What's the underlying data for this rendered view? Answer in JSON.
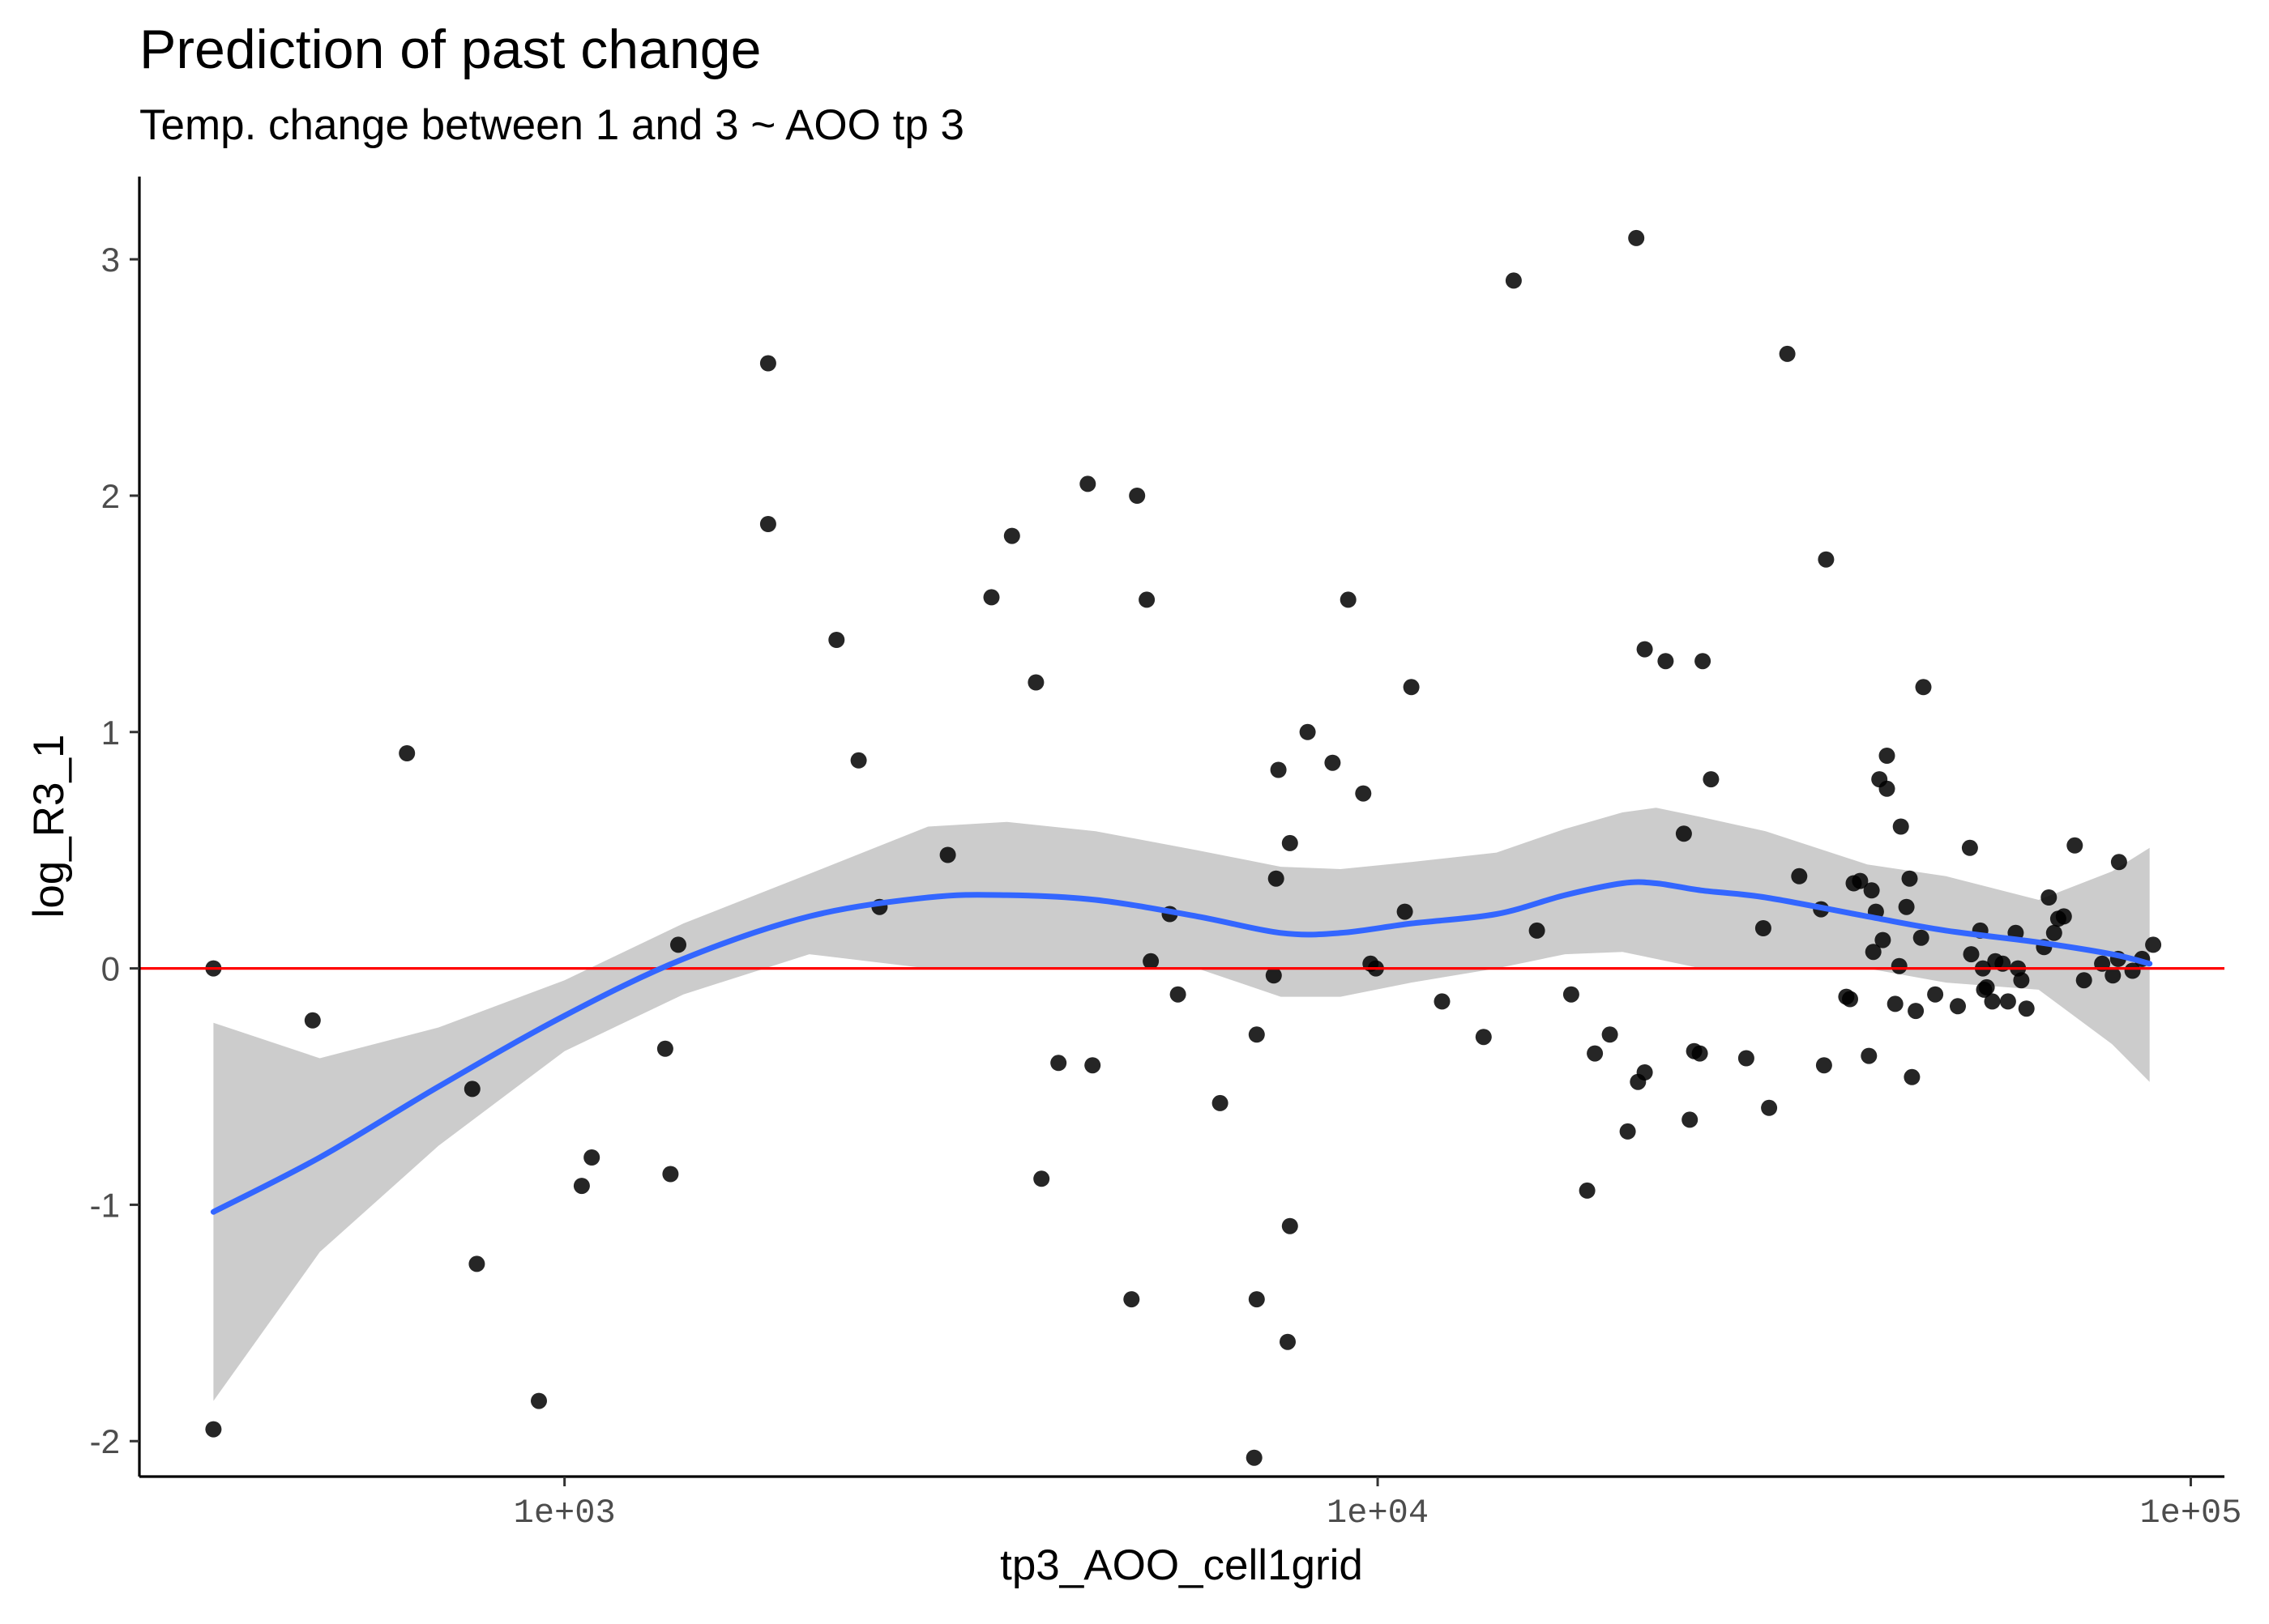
{
  "chart_data": {
    "type": "scatter",
    "title": "Prediction of past change",
    "subtitle": "Temp. change between 1 and 3 ~ AOO tp 3",
    "xlabel": "tp3_AOO_cell1grid",
    "ylabel": "log_R3_1",
    "x_scale": "log10",
    "xlim": [
      300,
      110000
    ],
    "ylim": [
      -2.15,
      3.35
    ],
    "x_ticks": [
      1000,
      10000,
      100000
    ],
    "x_tick_labels": [
      "1e+03",
      "1e+04",
      "1e+05"
    ],
    "y_ticks": [
      -2,
      -1,
      0,
      1,
      2,
      3
    ],
    "y_tick_labels": [
      "-2",
      "-1",
      "0",
      "1",
      "2",
      "3"
    ],
    "grid": false,
    "reference_line": {
      "y": 0,
      "color": "#ff0000"
    },
    "colors": {
      "points": "#000000",
      "smooth_line": "#3366ff",
      "ribbon": "#cccccc",
      "reference_line": "#ff0000",
      "axis": "#000000",
      "tick_labels": "#4d4d4d"
    },
    "points": [
      [
        370,
        0.0
      ],
      [
        370,
        -1.95
      ],
      [
        490,
        -0.22
      ],
      [
        640,
        0.91
      ],
      [
        770,
        -0.51
      ],
      [
        780,
        -1.25
      ],
      [
        930,
        -1.83
      ],
      [
        1050,
        -0.92
      ],
      [
        1080,
        -0.8
      ],
      [
        1330,
        -0.34
      ],
      [
        1350,
        -0.87
      ],
      [
        1380,
        0.1
      ],
      [
        1780,
        2.56
      ],
      [
        1780,
        1.88
      ],
      [
        2160,
        1.39
      ],
      [
        2300,
        0.88
      ],
      [
        2440,
        0.26
      ],
      [
        2960,
        0.48
      ],
      [
        3350,
        1.57
      ],
      [
        3550,
        1.83
      ],
      [
        3800,
        1.21
      ],
      [
        3860,
        -0.89
      ],
      [
        4050,
        -0.4
      ],
      [
        4400,
        2.05
      ],
      [
        4460,
        -0.41
      ],
      [
        4980,
        -1.4
      ],
      [
        5060,
        2.0
      ],
      [
        5200,
        1.56
      ],
      [
        5260,
        0.03
      ],
      [
        5550,
        0.23
      ],
      [
        5680,
        -0.11
      ],
      [
        6400,
        -0.57
      ],
      [
        7050,
        -2.07
      ],
      [
        7100,
        -0.28
      ],
      [
        7100,
        -1.4
      ],
      [
        7500,
        0.38
      ],
      [
        7450,
        -0.03
      ],
      [
        7550,
        0.84
      ],
      [
        7750,
        -1.58
      ],
      [
        7800,
        -1.09
      ],
      [
        7800,
        0.53
      ],
      [
        8200,
        1.0
      ],
      [
        8800,
        0.87
      ],
      [
        9200,
        1.56
      ],
      [
        9600,
        0.74
      ],
      [
        9800,
        0.02
      ],
      [
        9950,
        0.0
      ],
      [
        10800,
        0.24
      ],
      [
        11000,
        1.19
      ],
      [
        12000,
        -0.14
      ],
      [
        13500,
        -0.29
      ],
      [
        14700,
        2.91
      ],
      [
        15700,
        0.16
      ],
      [
        17300,
        -0.11
      ],
      [
        18100,
        -0.94
      ],
      [
        18500,
        -0.36
      ],
      [
        19300,
        -0.28
      ],
      [
        20300,
        -0.69
      ],
      [
        20800,
        3.09
      ],
      [
        20900,
        -0.48
      ],
      [
        21300,
        1.35
      ],
      [
        21300,
        -0.44
      ],
      [
        22600,
        1.3
      ],
      [
        23800,
        0.57
      ],
      [
        24200,
        -0.64
      ],
      [
        24500,
        -0.35
      ],
      [
        24900,
        -0.36
      ],
      [
        25100,
        1.3
      ],
      [
        25700,
        0.8
      ],
      [
        28400,
        -0.38
      ],
      [
        29800,
        0.17
      ],
      [
        30300,
        -0.59
      ],
      [
        31900,
        2.6
      ],
      [
        33000,
        0.39
      ],
      [
        35100,
        0.25
      ],
      [
        35400,
        -0.41
      ],
      [
        35600,
        1.73
      ],
      [
        37700,
        -0.12
      ],
      [
        38100,
        -0.13
      ],
      [
        38500,
        0.36
      ],
      [
        39200,
        0.37
      ],
      [
        40200,
        -0.37
      ],
      [
        40500,
        0.33
      ],
      [
        40700,
        0.07
      ],
      [
        41000,
        0.24
      ],
      [
        41400,
        0.8
      ],
      [
        41800,
        0.12
      ],
      [
        42300,
        0.9
      ],
      [
        42300,
        0.76
      ],
      [
        43300,
        -0.15
      ],
      [
        43800,
        0.01
      ],
      [
        44000,
        0.6
      ],
      [
        44700,
        0.26
      ],
      [
        45100,
        0.38
      ],
      [
        45400,
        -0.46
      ],
      [
        45900,
        -0.18
      ],
      [
        46600,
        0.13
      ],
      [
        46900,
        1.19
      ],
      [
        48500,
        -0.11
      ],
      [
        51700,
        -0.16
      ],
      [
        53500,
        0.51
      ],
      [
        53700,
        0.06
      ],
      [
        55100,
        0.16
      ],
      [
        55500,
        0.0
      ],
      [
        55700,
        -0.09
      ],
      [
        56100,
        -0.08
      ],
      [
        57000,
        -0.14
      ],
      [
        57500,
        0.03
      ],
      [
        58700,
        0.02
      ],
      [
        59600,
        -0.14
      ],
      [
        60900,
        0.15
      ],
      [
        61300,
        0.0
      ],
      [
        61900,
        -0.05
      ],
      [
        62800,
        -0.17
      ],
      [
        66000,
        0.09
      ],
      [
        66900,
        0.3
      ],
      [
        67900,
        0.15
      ],
      [
        68700,
        0.21
      ],
      [
        69800,
        0.22
      ],
      [
        72000,
        0.52
      ],
      [
        73900,
        -0.05
      ],
      [
        77800,
        0.02
      ],
      [
        80200,
        -0.03
      ],
      [
        81400,
        0.04
      ],
      [
        81600,
        0.45
      ],
      [
        84800,
        -0.01
      ],
      [
        87100,
        0.04
      ],
      [
        89900,
        0.1
      ]
    ],
    "smooth": {
      "x": [
        370,
        500,
        700,
        1000,
        1400,
        2000,
        2800,
        3500,
        4500,
        6000,
        7600,
        9000,
        11000,
        14000,
        17000,
        20000,
        22000,
        25000,
        30000,
        40000,
        50000,
        65000,
        80000,
        89000
      ],
      "y": [
        -1.03,
        -0.8,
        -0.5,
        -0.2,
        0.04,
        0.22,
        0.3,
        0.31,
        0.29,
        0.22,
        0.15,
        0.15,
        0.19,
        0.23,
        0.31,
        0.36,
        0.36,
        0.33,
        0.3,
        0.22,
        0.16,
        0.11,
        0.06,
        0.02
      ],
      "lower": [
        -1.83,
        -1.2,
        -0.75,
        -0.35,
        -0.11,
        0.06,
        0.0,
        0.0,
        0.0,
        0.0,
        -0.12,
        -0.12,
        -0.06,
        0.0,
        0.06,
        0.07,
        0.04,
        0.0,
        0.0,
        0.0,
        -0.06,
        -0.09,
        -0.32,
        -0.48
      ],
      "upper": [
        -0.23,
        -0.38,
        -0.25,
        -0.05,
        0.19,
        0.4,
        0.6,
        0.62,
        0.58,
        0.5,
        0.43,
        0.42,
        0.45,
        0.49,
        0.59,
        0.66,
        0.68,
        0.64,
        0.58,
        0.44,
        0.39,
        0.29,
        0.41,
        0.51
      ]
    }
  }
}
